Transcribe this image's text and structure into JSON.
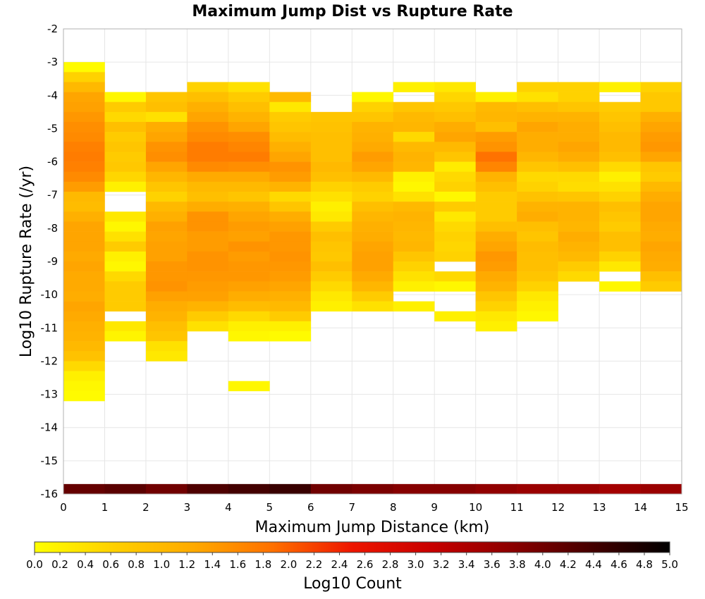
{
  "chart_data": {
    "type": "heatmap",
    "title": "Maximum Jump Dist vs Rupture Rate",
    "xlabel": "Maximum Jump Distance (km)",
    "ylabel": "Log10 Rupture Rate (/yr)",
    "xlim": [
      0,
      15
    ],
    "ylim": [
      -16,
      -2
    ],
    "x_ticks": [
      "0",
      "1",
      "2",
      "3",
      "4",
      "5",
      "6",
      "7",
      "8",
      "9",
      "10",
      "11",
      "12",
      "13",
      "14",
      "15"
    ],
    "y_ticks": [
      "-2",
      "-3",
      "-4",
      "-5",
      "-6",
      "-7",
      "-8",
      "-9",
      "-10",
      "-11",
      "-12",
      "-13",
      "-14",
      "-15",
      "-16"
    ],
    "grid": true,
    "x_bin_width": 1,
    "y_bin_height": 0.3,
    "colorbar": {
      "label": "Log10 Count",
      "range": [
        0,
        5
      ],
      "ticks": [
        "0.0",
        "0.2",
        "0.4",
        "0.6",
        "0.8",
        "1.0",
        "1.2",
        "1.4",
        "1.6",
        "1.8",
        "2.0",
        "2.2",
        "2.4",
        "2.6",
        "2.8",
        "3.0",
        "3.2",
        "3.4",
        "3.6",
        "3.8",
        "4.0",
        "4.2",
        "4.4",
        "4.6",
        "4.8",
        "5.0"
      ],
      "colors": [
        "#ffff00",
        "#ffd000",
        "#ffaa00",
        "#ff7000",
        "#ee1500",
        "#c80000",
        "#8c0000",
        "#460000",
        "#000000"
      ]
    },
    "columns": [
      {
        "x": 0,
        "y_start": -3.0,
        "values": [
          0.05,
          0.6,
          1.0,
          1.3,
          1.35,
          1.45,
          1.55,
          1.6,
          1.7,
          1.75,
          1.7,
          1.6,
          1.4,
          1.0,
          0.95,
          1.15,
          1.3,
          1.3,
          1.3,
          1.25,
          1.3,
          1.25,
          1.25,
          1.2,
          1.3,
          1.25,
          1.15,
          1.1,
          1.0,
          0.85,
          0.5,
          0.2,
          0.1,
          0.05
        ]
      },
      {
        "x": 1,
        "y_start": -3.9,
        "values": [
          0.1,
          0.7,
          0.5,
          0.9,
          0.7,
          0.8,
          0.7,
          0.75,
          0.55,
          0.2,
          null,
          null,
          0.3,
          0.1,
          0.4,
          0.7,
          0.2,
          0.1,
          0.5,
          0.7,
          0.7,
          0.7,
          null,
          0.3,
          0.15
        ]
      },
      {
        "x": 2,
        "y_start": -3.9,
        "values": [
          0.8,
          0.9,
          0.4,
          1.2,
          1.3,
          1.5,
          1.55,
          1.3,
          1.05,
          0.8,
          0.6,
          1.0,
          1.15,
          1.35,
          1.3,
          1.35,
          1.35,
          1.45,
          1.45,
          1.5,
          1.35,
          1.2,
          1.1,
          0.9,
          0.8,
          0.4,
          0.3
        ]
      },
      {
        "x": 3,
        "y_start": -3.6,
        "values": [
          0.6,
          0.9,
          1.15,
          1.3,
          1.5,
          1.6,
          1.75,
          1.75,
          1.6,
          1.25,
          1.0,
          0.9,
          1.2,
          1.5,
          1.5,
          1.4,
          1.4,
          1.5,
          1.5,
          1.45,
          1.4,
          1.35,
          1.1,
          0.7,
          0.4
        ]
      },
      {
        "x": 4,
        "y_start": -3.6,
        "values": [
          0.4,
          0.7,
          0.9,
          1.1,
          1.3,
          1.55,
          1.65,
          1.75,
          1.55,
          1.25,
          1.0,
          0.8,
          1.15,
          1.3,
          1.4,
          1.35,
          1.5,
          1.4,
          1.45,
          1.45,
          1.35,
          1.2,
          0.95,
          0.5,
          0.2,
          0.1,
          null,
          null,
          null,
          null,
          0.1
        ]
      },
      {
        "x": 5,
        "y_start": -3.9,
        "values": [
          1.0,
          0.3,
          0.7,
          0.8,
          0.95,
          1.15,
          1.3,
          1.5,
          1.4,
          1.1,
          0.5,
          0.8,
          1.2,
          1.35,
          1.45,
          1.45,
          1.5,
          1.45,
          1.4,
          1.3,
          1.15,
          1.0,
          0.7,
          0.2,
          0.05
        ]
      },
      {
        "x": 6,
        "y_start": -4.5,
        "values": [
          0.8,
          0.85,
          0.9,
          0.9,
          0.9,
          1.0,
          0.9,
          0.6,
          0.4,
          0.2,
          0.3,
          0.7,
          0.9,
          0.8,
          0.75,
          0.9,
          0.7,
          0.5,
          0.3,
          0.2
        ]
      },
      {
        "x": 7,
        "y_start": -3.9,
        "values": [
          0.1,
          0.6,
          0.8,
          1.1,
          1.15,
          1.25,
          1.4,
          1.3,
          1.0,
          0.7,
          0.6,
          0.9,
          1.05,
          1.15,
          1.2,
          1.3,
          1.35,
          1.35,
          1.25,
          1.05,
          0.7,
          0.4
        ]
      },
      {
        "x": 8,
        "y_start": -3.6,
        "values": [
          0.2,
          null,
          0.8,
          1.0,
          1.05,
          0.5,
          1.0,
          1.1,
          1.05,
          0.2,
          0.1,
          0.4,
          1.0,
          1.1,
          1.05,
          1.0,
          1.05,
          0.8,
          0.6,
          0.4,
          0.2,
          null,
          0.2
        ]
      },
      {
        "x": 9,
        "y_start": -3.6,
        "values": [
          0.3,
          0.55,
          0.75,
          0.9,
          1.2,
          1.3,
          1.0,
          0.8,
          0.25,
          0.5,
          0.6,
          0.1,
          0.7,
          0.3,
          0.5,
          0.6,
          0.55,
          0.6,
          null,
          0.5,
          0.1,
          null,
          null,
          0.2
        ]
      },
      {
        "x": 10,
        "y_start": -3.9,
        "values": [
          0.2,
          1.0,
          1.05,
          0.9,
          1.4,
          1.5,
          1.85,
          1.65,
          1.1,
          0.9,
          0.7,
          0.7,
          0.7,
          0.9,
          1.2,
          1.3,
          1.45,
          1.4,
          1.25,
          1.1,
          0.8,
          0.6,
          0.3,
          0.2
        ]
      },
      {
        "x": 11,
        "y_start": -3.6,
        "values": [
          0.6,
          0.4,
          0.9,
          1.1,
          1.3,
          1.2,
          1.2,
          1.05,
          0.8,
          0.5,
          0.6,
          0.85,
          1.1,
          1.2,
          0.9,
          0.8,
          0.95,
          0.9,
          0.9,
          0.8,
          0.6,
          0.3,
          0.2,
          0.1
        ]
      },
      {
        "x": 12,
        "y_start": -3.6,
        "values": [
          0.6,
          0.6,
          0.8,
          1.1,
          1.2,
          1.2,
          1.3,
          1.2,
          0.9,
          0.5,
          0.45,
          0.8,
          1.1,
          1.1,
          1.05,
          1.2,
          1.1,
          1.0,
          0.7,
          0.5
        ]
      },
      {
        "x": 13,
        "y_start": -3.6,
        "values": [
          0.2,
          null,
          0.7,
          0.8,
          0.9,
          1.0,
          1.0,
          0.9,
          0.5,
          0.2,
          0.4,
          0.6,
          0.9,
          0.8,
          0.7,
          0.9,
          0.9,
          0.6,
          0.3,
          null,
          0.1
        ]
      },
      {
        "x": 14,
        "y_start": -3.6,
        "values": [
          0.6,
          0.75,
          0.75,
          1.15,
          1.3,
          1.4,
          1.45,
          1.3,
          0.8,
          0.7,
          1.0,
          1.2,
          1.3,
          1.3,
          1.25,
          1.2,
          1.3,
          1.25,
          1.2,
          0.9,
          0.7
        ]
      }
    ],
    "bottom_row": {
      "y": -16.0,
      "values": [
        4.1,
        4.2,
        4.0,
        4.3,
        4.4,
        4.5,
        4.0,
        3.9,
        3.8,
        3.8,
        3.7,
        3.6,
        3.6,
        3.5,
        3.6
      ]
    }
  }
}
